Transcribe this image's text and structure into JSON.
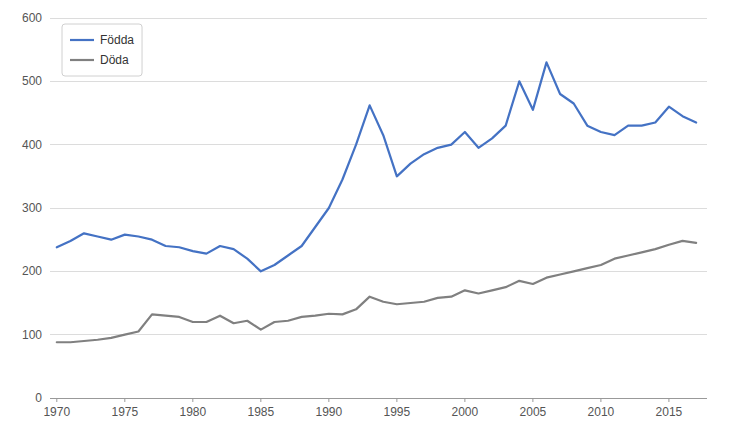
{
  "chart_data": {
    "type": "line",
    "x": [
      1970,
      1971,
      1972,
      1973,
      1974,
      1975,
      1976,
      1977,
      1978,
      1979,
      1980,
      1981,
      1982,
      1983,
      1984,
      1985,
      1986,
      1987,
      1988,
      1989,
      1990,
      1991,
      1992,
      1993,
      1994,
      1995,
      1996,
      1997,
      1998,
      1999,
      2000,
      2001,
      2002,
      2003,
      2004,
      2005,
      2006,
      2007,
      2008,
      2009,
      2010,
      2011,
      2012,
      2013,
      2014,
      2015,
      2016,
      2017
    ],
    "series": [
      {
        "name": "Födda",
        "color": "#4472C4",
        "values": [
          238,
          248,
          260,
          255,
          250,
          258,
          255,
          250,
          240,
          238,
          232,
          228,
          240,
          235,
          220,
          200,
          210,
          225,
          240,
          270,
          300,
          345,
          400,
          462,
          415,
          350,
          370,
          385,
          395,
          400,
          420,
          395,
          410,
          430,
          500,
          455,
          530,
          480,
          465,
          430,
          420,
          415,
          430,
          430,
          435,
          460,
          445,
          435
        ]
      },
      {
        "name": "Döda",
        "color": "#808080",
        "values": [
          88,
          88,
          90,
          92,
          95,
          100,
          105,
          132,
          130,
          128,
          120,
          120,
          130,
          118,
          122,
          108,
          120,
          122,
          128,
          130,
          133,
          132,
          140,
          160,
          152,
          148,
          150,
          152,
          158,
          160,
          170,
          165,
          170,
          175,
          185,
          180,
          190,
          195,
          200,
          205,
          210,
          220,
          225,
          230,
          235,
          242,
          248,
          245
        ]
      }
    ],
    "xlim": [
      1969.5,
      2017.8
    ],
    "xticks": [
      1970,
      1975,
      1980,
      1985,
      1990,
      1995,
      2000,
      2005,
      2010,
      2015
    ],
    "ylim": [
      0,
      600
    ],
    "yticks": [
      0,
      100,
      200,
      300,
      400,
      500,
      600
    ],
    "grid": true,
    "legend": "upper left"
  }
}
